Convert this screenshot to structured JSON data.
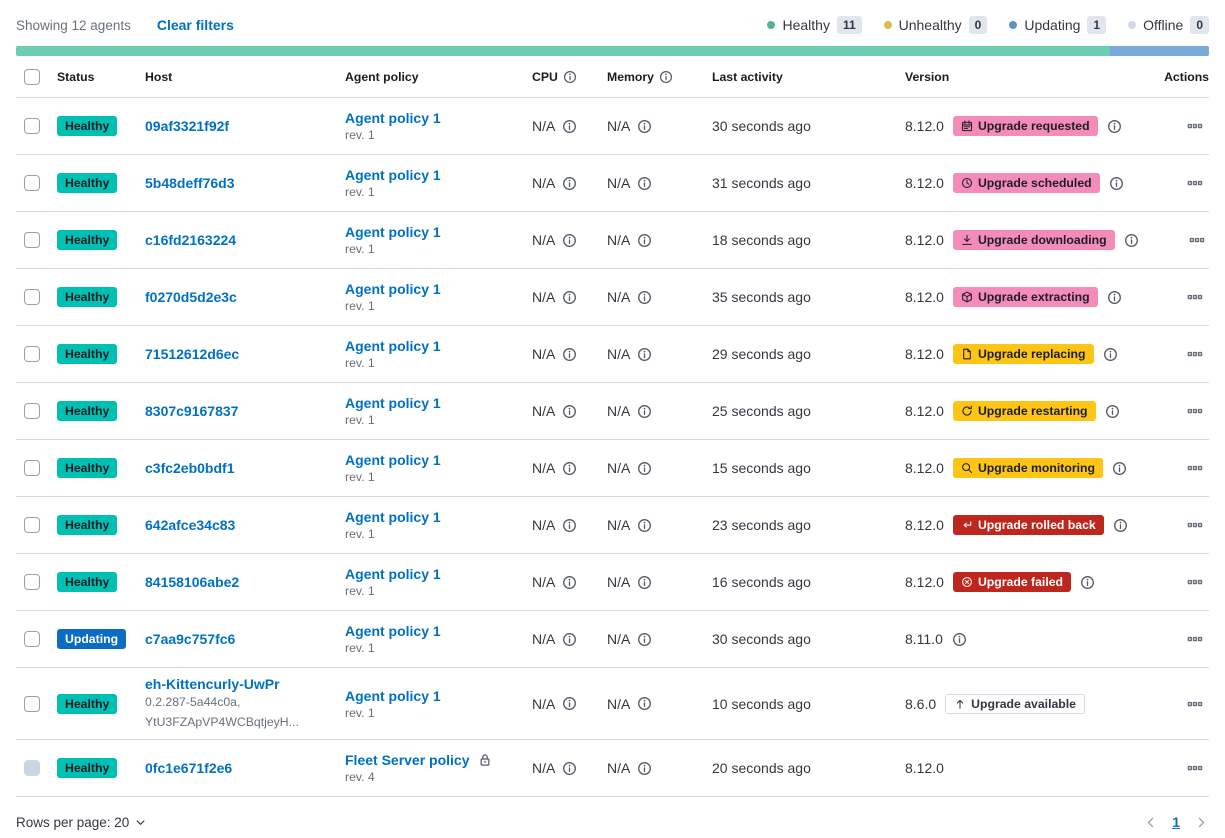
{
  "toolbar": {
    "showing": "Showing 12 agents",
    "clear_filters": "Clear filters"
  },
  "legend": {
    "items": [
      {
        "label": "Healthy",
        "count": "11",
        "dot_color": "#54B399"
      },
      {
        "label": "Unhealthy",
        "count": "0",
        "dot_color": "#D6BF57"
      },
      {
        "label": "Updating",
        "count": "1",
        "dot_color": "#6092C0"
      },
      {
        "label": "Offline",
        "count": "0",
        "dot_color": "#D3DAE6"
      }
    ]
  },
  "health_bar": {
    "segments": [
      {
        "name": "healthy",
        "color": "#6DCCB1",
        "percent": 91.67
      },
      {
        "name": "updating",
        "color": "#79AAD9",
        "percent": 8.33
      }
    ]
  },
  "colors": {
    "status_variants": {
      "healthy": {
        "bg": "#00BFB3",
        "fg": "#1C1E23"
      },
      "updating": {
        "bg": "#0B6CC6",
        "fg": "#FFFFFF"
      }
    },
    "badge_variants": {
      "accent": {
        "bg": "#F48BB8",
        "fg": "#1C1E23",
        "border": "none"
      },
      "warning": {
        "bg": "#FEC514",
        "fg": "#1C1E23",
        "border": "none"
      },
      "danger": {
        "bg": "#BD271E",
        "fg": "#FFFFFF",
        "border": "none"
      },
      "hollow": {
        "bg": "#FFFFFF",
        "fg": "#343741",
        "border": "1px solid #D3DAE6"
      }
    }
  },
  "table": {
    "headers": {
      "status": "Status",
      "host": "Host",
      "policy": "Agent policy",
      "cpu": "CPU",
      "memory": "Memory",
      "last_activity": "Last activity",
      "version": "Version",
      "actions": "Actions"
    },
    "rows": [
      {
        "status": {
          "label": "Healthy",
          "variant": "healthy"
        },
        "host": {
          "name": "09af3321f92f",
          "meta": []
        },
        "policy": {
          "name": "Agent policy 1",
          "rev": "rev. 1",
          "locked": false
        },
        "cpu": "N/A",
        "memory": "N/A",
        "last_activity": "30 seconds ago",
        "version": {
          "number": "8.12.0",
          "badge": {
            "label": "Upgrade requested",
            "icon": "calendar",
            "variant": "accent"
          },
          "info": true
        },
        "checkbox_disabled": false
      },
      {
        "status": {
          "label": "Healthy",
          "variant": "healthy"
        },
        "host": {
          "name": "5b48deff76d3",
          "meta": []
        },
        "policy": {
          "name": "Agent policy 1",
          "rev": "rev. 1",
          "locked": false
        },
        "cpu": "N/A",
        "memory": "N/A",
        "last_activity": "31 seconds ago",
        "version": {
          "number": "8.12.0",
          "badge": {
            "label": "Upgrade scheduled",
            "icon": "clock",
            "variant": "accent"
          },
          "info": true
        },
        "checkbox_disabled": false
      },
      {
        "status": {
          "label": "Healthy",
          "variant": "healthy"
        },
        "host": {
          "name": "c16fd2163224",
          "meta": []
        },
        "policy": {
          "name": "Agent policy 1",
          "rev": "rev. 1",
          "locked": false
        },
        "cpu": "N/A",
        "memory": "N/A",
        "last_activity": "18 seconds ago",
        "version": {
          "number": "8.12.0",
          "badge": {
            "label": "Upgrade downloading",
            "icon": "download",
            "variant": "accent"
          },
          "info": true
        },
        "checkbox_disabled": false
      },
      {
        "status": {
          "label": "Healthy",
          "variant": "healthy"
        },
        "host": {
          "name": "f0270d5d2e3c",
          "meta": []
        },
        "policy": {
          "name": "Agent policy 1",
          "rev": "rev. 1",
          "locked": false
        },
        "cpu": "N/A",
        "memory": "N/A",
        "last_activity": "35 seconds ago",
        "version": {
          "number": "8.12.0",
          "badge": {
            "label": "Upgrade extracting",
            "icon": "package",
            "variant": "accent"
          },
          "info": true
        },
        "checkbox_disabled": false
      },
      {
        "status": {
          "label": "Healthy",
          "variant": "healthy"
        },
        "host": {
          "name": "71512612d6ec",
          "meta": []
        },
        "policy": {
          "name": "Agent policy 1",
          "rev": "rev. 1",
          "locked": false
        },
        "cpu": "N/A",
        "memory": "N/A",
        "last_activity": "29 seconds ago",
        "version": {
          "number": "8.12.0",
          "badge": {
            "label": "Upgrade replacing",
            "icon": "document",
            "variant": "warning"
          },
          "info": true
        },
        "checkbox_disabled": false
      },
      {
        "status": {
          "label": "Healthy",
          "variant": "healthy"
        },
        "host": {
          "name": "8307c9167837",
          "meta": []
        },
        "policy": {
          "name": "Agent policy 1",
          "rev": "rev. 1",
          "locked": false
        },
        "cpu": "N/A",
        "memory": "N/A",
        "last_activity": "25 seconds ago",
        "version": {
          "number": "8.12.0",
          "badge": {
            "label": "Upgrade restarting",
            "icon": "refresh",
            "variant": "warning"
          },
          "info": true
        },
        "checkbox_disabled": false
      },
      {
        "status": {
          "label": "Healthy",
          "variant": "healthy"
        },
        "host": {
          "name": "c3fc2eb0bdf1",
          "meta": []
        },
        "policy": {
          "name": "Agent policy 1",
          "rev": "rev. 1",
          "locked": false
        },
        "cpu": "N/A",
        "memory": "N/A",
        "last_activity": "15 seconds ago",
        "version": {
          "number": "8.12.0",
          "badge": {
            "label": "Upgrade monitoring",
            "icon": "inspect",
            "variant": "warning"
          },
          "info": true
        },
        "checkbox_disabled": false
      },
      {
        "status": {
          "label": "Healthy",
          "variant": "healthy"
        },
        "host": {
          "name": "642afce34c83",
          "meta": []
        },
        "policy": {
          "name": "Agent policy 1",
          "rev": "rev. 1",
          "locked": false
        },
        "cpu": "N/A",
        "memory": "N/A",
        "last_activity": "23 seconds ago",
        "version": {
          "number": "8.12.0",
          "badge": {
            "label": "Upgrade rolled back",
            "icon": "return",
            "variant": "danger"
          },
          "info": true
        },
        "checkbox_disabled": false
      },
      {
        "status": {
          "label": "Healthy",
          "variant": "healthy"
        },
        "host": {
          "name": "84158106abe2",
          "meta": []
        },
        "policy": {
          "name": "Agent policy 1",
          "rev": "rev. 1",
          "locked": false
        },
        "cpu": "N/A",
        "memory": "N/A",
        "last_activity": "16 seconds ago",
        "version": {
          "number": "8.12.0",
          "badge": {
            "label": "Upgrade failed",
            "icon": "error",
            "variant": "danger"
          },
          "info": true
        },
        "checkbox_disabled": false
      },
      {
        "status": {
          "label": "Updating",
          "variant": "updating"
        },
        "host": {
          "name": "c7aa9c757fc6",
          "meta": []
        },
        "policy": {
          "name": "Agent policy 1",
          "rev": "rev. 1",
          "locked": false
        },
        "cpu": "N/A",
        "memory": "N/A",
        "last_activity": "30 seconds ago",
        "version": {
          "number": "8.11.0",
          "badge": null,
          "info": true
        },
        "checkbox_disabled": false
      },
      {
        "status": {
          "label": "Healthy",
          "variant": "healthy"
        },
        "host": {
          "name": "eh-Kittencurly-UwPr",
          "meta": [
            "0.2.287-5a44c0a,",
            "YtU3FZApVP4WCBqtjeyH..."
          ]
        },
        "policy": {
          "name": "Agent policy 1",
          "rev": "rev. 1",
          "locked": false
        },
        "cpu": "N/A",
        "memory": "N/A",
        "last_activity": "10 seconds ago",
        "version": {
          "number": "8.6.0",
          "badge": {
            "label": "Upgrade available",
            "icon": "sortUp",
            "variant": "hollow"
          },
          "info": false
        },
        "checkbox_disabled": false
      },
      {
        "status": {
          "label": "Healthy",
          "variant": "healthy"
        },
        "host": {
          "name": "0fc1e671f2e6",
          "meta": []
        },
        "policy": {
          "name": "Fleet Server policy",
          "rev": "rev. 4",
          "locked": true
        },
        "cpu": "N/A",
        "memory": "N/A",
        "last_activity": "20 seconds ago",
        "version": {
          "number": "8.12.0",
          "badge": null,
          "info": false
        },
        "checkbox_disabled": true
      }
    ]
  },
  "footer": {
    "rows_per_page_label": "Rows per page: 20",
    "page": "1"
  }
}
